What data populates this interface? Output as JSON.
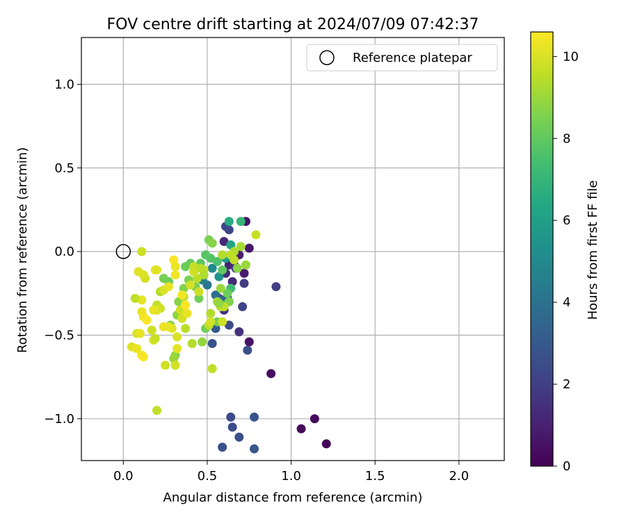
{
  "chart_data": {
    "type": "scatter",
    "title": "FOV centre drift starting at 2024/07/09 07:42:37",
    "xlabel": "Angular distance from reference (arcmin)",
    "ylabel": "Rotation from reference (arcmin)",
    "xlim": [
      -0.25,
      2.27
    ],
    "ylim": [
      -1.25,
      1.28
    ],
    "xticks": [
      0.0,
      0.5,
      1.0,
      1.5,
      2.0
    ],
    "xtick_labels": [
      "0.0",
      "0.5",
      "1.0",
      "1.5",
      "2.0"
    ],
    "yticks": [
      -1.0,
      -0.5,
      0.0,
      0.5,
      1.0
    ],
    "ytick_labels": [
      "−1.0",
      "−0.5",
      "0.0",
      "0.5",
      "1.0"
    ],
    "grid": true,
    "legend": {
      "position": "top-right",
      "entries": [
        "Reference platepar"
      ]
    },
    "reference_point": {
      "x": 0.0,
      "y": 0.0,
      "label": "Reference platepar"
    },
    "colorbar": {
      "label": "Hours from first FF file",
      "colormap": "viridis",
      "range": [
        0,
        10.6
      ],
      "ticks": [
        0,
        2,
        4,
        6,
        8,
        10
      ],
      "tick_labels": [
        "0",
        "2",
        "4",
        "6",
        "8",
        "10"
      ]
    },
    "points": [
      {
        "x": 1.21,
        "y": -1.15,
        "c": 0.1
      },
      {
        "x": 1.14,
        "y": -1.0,
        "c": 0.2
      },
      {
        "x": 1.06,
        "y": -1.06,
        "c": 0.3
      },
      {
        "x": 0.88,
        "y": -0.73,
        "c": 0.4
      },
      {
        "x": 0.75,
        "y": -0.54,
        "c": 0.5
      },
      {
        "x": 0.73,
        "y": 0.18,
        "c": 0.6
      },
      {
        "x": 0.75,
        "y": 0.02,
        "c": 0.7
      },
      {
        "x": 0.72,
        "y": -0.13,
        "c": 0.8
      },
      {
        "x": 0.69,
        "y": -0.02,
        "c": 0.9
      },
      {
        "x": 0.66,
        "y": -0.08,
        "c": 1.0
      },
      {
        "x": 0.63,
        "y": -0.08,
        "c": 1.1
      },
      {
        "x": 0.6,
        "y": 0.06,
        "c": 1.2
      },
      {
        "x": 0.65,
        "y": -0.18,
        "c": 1.3
      },
      {
        "x": 0.61,
        "y": -0.13,
        "c": 1.4
      },
      {
        "x": 0.69,
        "y": -0.48,
        "c": 1.5
      },
      {
        "x": 0.6,
        "y": -0.35,
        "c": 1.6
      },
      {
        "x": 0.62,
        "y": -0.28,
        "c": 1.7
      },
      {
        "x": 0.57,
        "y": -0.28,
        "c": 1.8
      },
      {
        "x": 0.72,
        "y": -0.19,
        "c": 1.9
      },
      {
        "x": 0.91,
        "y": -0.21,
        "c": 2.0
      },
      {
        "x": 0.67,
        "y": -0.1,
        "c": 2.1
      },
      {
        "x": 0.63,
        "y": 0.13,
        "c": 2.2
      },
      {
        "x": 0.61,
        "y": 0.15,
        "c": 2.3
      },
      {
        "x": 0.64,
        "y": -0.99,
        "c": 2.4
      },
      {
        "x": 0.65,
        "y": -1.05,
        "c": 2.5
      },
      {
        "x": 0.69,
        "y": -1.11,
        "c": 2.6
      },
      {
        "x": 0.59,
        "y": -1.17,
        "c": 2.7
      },
      {
        "x": 0.78,
        "y": -0.99,
        "c": 2.8
      },
      {
        "x": 0.78,
        "y": -1.18,
        "c": 2.9
      },
      {
        "x": 0.71,
        "y": -0.33,
        "c": 2.2
      },
      {
        "x": 0.63,
        "y": -0.44,
        "c": 2.4
      },
      {
        "x": 0.74,
        "y": -0.59,
        "c": 2.6
      },
      {
        "x": 0.53,
        "y": -0.55,
        "c": 2.8
      },
      {
        "x": 0.55,
        "y": -0.46,
        "c": 3.0
      },
      {
        "x": 0.63,
        "y": -0.3,
        "c": 3.2
      },
      {
        "x": 0.59,
        "y": -0.29,
        "c": 3.5
      },
      {
        "x": 0.55,
        "y": -0.26,
        "c": 3.8
      },
      {
        "x": 0.5,
        "y": -0.2,
        "c": 4.2
      },
      {
        "x": 0.47,
        "y": -0.17,
        "c": 4.6
      },
      {
        "x": 0.53,
        "y": -0.1,
        "c": 5.0
      },
      {
        "x": 0.57,
        "y": -0.15,
        "c": 5.4
      },
      {
        "x": 0.61,
        "y": -0.04,
        "c": 5.8
      },
      {
        "x": 0.64,
        "y": 0.04,
        "c": 6.2
      },
      {
        "x": 0.63,
        "y": 0.18,
        "c": 6.6
      },
      {
        "x": 0.7,
        "y": 0.18,
        "c": 7.0
      },
      {
        "x": 0.64,
        "y": -0.22,
        "c": 7.3
      },
      {
        "x": 0.6,
        "y": -0.32,
        "c": 7.5
      },
      {
        "x": 0.56,
        "y": -0.06,
        "c": 7.6
      },
      {
        "x": 0.52,
        "y": -0.04,
        "c": 7.7
      },
      {
        "x": 0.49,
        "y": -0.02,
        "c": 7.8
      },
      {
        "x": 0.46,
        "y": -0.07,
        "c": 7.9
      },
      {
        "x": 0.42,
        "y": -0.12,
        "c": 8.0
      },
      {
        "x": 0.4,
        "y": -0.07,
        "c": 8.1
      },
      {
        "x": 0.37,
        "y": -0.09,
        "c": 8.2
      },
      {
        "x": 0.45,
        "y": -0.28,
        "c": 8.3
      },
      {
        "x": 0.43,
        "y": -0.21,
        "c": 8.4
      },
      {
        "x": 0.39,
        "y": -0.17,
        "c": 8.5
      },
      {
        "x": 0.36,
        "y": -0.22,
        "c": 8.6
      },
      {
        "x": 0.33,
        "y": -0.3,
        "c": 8.7
      },
      {
        "x": 0.32,
        "y": -0.38,
        "c": 8.8
      },
      {
        "x": 0.27,
        "y": -0.18,
        "c": 8.2
      },
      {
        "x": 0.24,
        "y": -0.16,
        "c": 8.4
      },
      {
        "x": 0.28,
        "y": -0.44,
        "c": 8.6
      },
      {
        "x": 0.31,
        "y": -0.62,
        "c": 8.8
      },
      {
        "x": 0.3,
        "y": -0.64,
        "c": 9.0
      },
      {
        "x": 0.49,
        "y": -0.46,
        "c": 8.3
      },
      {
        "x": 0.47,
        "y": -0.54,
        "c": 8.9
      },
      {
        "x": 0.51,
        "y": 0.07,
        "c": 8.5
      },
      {
        "x": 0.53,
        "y": 0.05,
        "c": 8.7
      },
      {
        "x": 0.59,
        "y": -0.11,
        "c": 8.0
      },
      {
        "x": 0.62,
        "y": -0.25,
        "c": 8.2
      },
      {
        "x": 0.56,
        "y": -0.42,
        "c": 8.4
      },
      {
        "x": 0.63,
        "y": -0.3,
        "c": 8.6
      },
      {
        "x": 0.68,
        "y": -0.1,
        "c": 8.8
      },
      {
        "x": 0.73,
        "y": -0.08,
        "c": 9.0
      },
      {
        "x": 0.7,
        "y": 0.03,
        "c": 9.2
      },
      {
        "x": 0.66,
        "y": 0.0,
        "c": 9.3
      },
      {
        "x": 0.59,
        "y": -0.02,
        "c": 9.4
      },
      {
        "x": 0.64,
        "y": -0.02,
        "c": 9.5
      },
      {
        "x": 0.66,
        "y": -0.05,
        "c": 9.6
      },
      {
        "x": 0.79,
        "y": 0.1,
        "c": 9.7
      },
      {
        "x": 0.58,
        "y": -0.22,
        "c": 9.0
      },
      {
        "x": 0.56,
        "y": -0.3,
        "c": 9.2
      },
      {
        "x": 0.58,
        "y": -0.33,
        "c": 9.4
      },
      {
        "x": 0.6,
        "y": -0.33,
        "c": 9.6
      },
      {
        "x": 0.59,
        "y": -0.42,
        "c": 9.8
      },
      {
        "x": 0.52,
        "y": -0.37,
        "c": 9.4
      },
      {
        "x": 0.51,
        "y": -0.44,
        "c": 9.6
      },
      {
        "x": 0.53,
        "y": -0.7,
        "c": 9.6
      },
      {
        "x": 0.45,
        "y": -0.24,
        "c": 9.8
      },
      {
        "x": 0.44,
        "y": -0.16,
        "c": 9.5
      },
      {
        "x": 0.48,
        "y": -0.11,
        "c": 9.7
      },
      {
        "x": 0.42,
        "y": -0.12,
        "c": 9.9
      },
      {
        "x": 0.36,
        "y": -0.27,
        "c": 9.6
      },
      {
        "x": 0.34,
        "y": -0.35,
        "c": 9.8
      },
      {
        "x": 0.37,
        "y": -0.46,
        "c": 9.5
      },
      {
        "x": 0.41,
        "y": -0.55,
        "c": 9.4
      },
      {
        "x": 0.35,
        "y": -0.4,
        "c": 9.9
      },
      {
        "x": 0.32,
        "y": -0.51,
        "c": 10.0
      },
      {
        "x": 0.29,
        "y": -0.46,
        "c": 10.1
      },
      {
        "x": 0.27,
        "y": -0.45,
        "c": 10.2
      },
      {
        "x": 0.24,
        "y": -0.45,
        "c": 10.3
      },
      {
        "x": 0.22,
        "y": -0.24,
        "c": 9.4
      },
      {
        "x": 0.2,
        "y": -0.32,
        "c": 9.6
      },
      {
        "x": 0.22,
        "y": -0.34,
        "c": 9.8
      },
      {
        "x": 0.2,
        "y": -0.35,
        "c": 10.0
      },
      {
        "x": 0.18,
        "y": -0.35,
        "c": 10.2
      },
      {
        "x": 0.13,
        "y": -0.16,
        "c": 9.9
      },
      {
        "x": 0.12,
        "y": -0.14,
        "c": 10.0
      },
      {
        "x": 0.09,
        "y": -0.12,
        "c": 10.1
      },
      {
        "x": 0.11,
        "y": -0.29,
        "c": 10.2
      },
      {
        "x": 0.07,
        "y": -0.28,
        "c": 9.6
      },
      {
        "x": 0.11,
        "y": -0.36,
        "c": 10.3
      },
      {
        "x": 0.12,
        "y": -0.39,
        "c": 10.4
      },
      {
        "x": 0.14,
        "y": -0.41,
        "c": 10.5
      },
      {
        "x": 0.17,
        "y": -0.47,
        "c": 9.8
      },
      {
        "x": 0.08,
        "y": -0.49,
        "c": 10.0
      },
      {
        "x": 0.1,
        "y": -0.49,
        "c": 10.2
      },
      {
        "x": 0.05,
        "y": -0.57,
        "c": 10.1
      },
      {
        "x": 0.08,
        "y": -0.58,
        "c": 10.3
      },
      {
        "x": 0.11,
        "y": -0.62,
        "c": 10.4
      },
      {
        "x": 0.12,
        "y": -0.63,
        "c": 10.5
      },
      {
        "x": 0.18,
        "y": -0.53,
        "c": 10.0
      },
      {
        "x": 0.19,
        "y": -0.52,
        "c": 9.7
      },
      {
        "x": 0.25,
        "y": -0.68,
        "c": 9.8
      },
      {
        "x": 0.31,
        "y": -0.68,
        "c": 9.9
      },
      {
        "x": 0.32,
        "y": -0.58,
        "c": 10.2
      },
      {
        "x": 0.2,
        "y": -0.95,
        "c": 9.6
      },
      {
        "x": 0.11,
        "y": 0.0,
        "c": 9.8
      },
      {
        "x": 0.19,
        "y": -0.11,
        "c": 10.3
      },
      {
        "x": 0.2,
        "y": -0.11,
        "c": 10.1
      },
      {
        "x": 0.24,
        "y": -0.23,
        "c": 10.0
      },
      {
        "x": 0.27,
        "y": -0.21,
        "c": 10.2
      },
      {
        "x": 0.31,
        "y": -0.14,
        "c": 10.4
      },
      {
        "x": 0.3,
        "y": -0.05,
        "c": 10.5
      },
      {
        "x": 0.31,
        "y": -0.09,
        "c": 10.3
      },
      {
        "x": 0.35,
        "y": -0.26,
        "c": 10.4
      },
      {
        "x": 0.37,
        "y": -0.32,
        "c": 10.5
      },
      {
        "x": 0.38,
        "y": -0.37,
        "c": 10.3
      },
      {
        "x": 0.4,
        "y": -0.2,
        "c": 9.9
      },
      {
        "x": 0.42,
        "y": -0.09,
        "c": 9.7
      },
      {
        "x": 0.46,
        "y": -0.1,
        "c": 9.5
      },
      {
        "x": 0.48,
        "y": -0.14,
        "c": 9.3
      },
      {
        "x": 0.52,
        "y": -0.42,
        "c": 9.9
      },
      {
        "x": 0.57,
        "y": -0.31,
        "c": 8.9
      }
    ]
  }
}
